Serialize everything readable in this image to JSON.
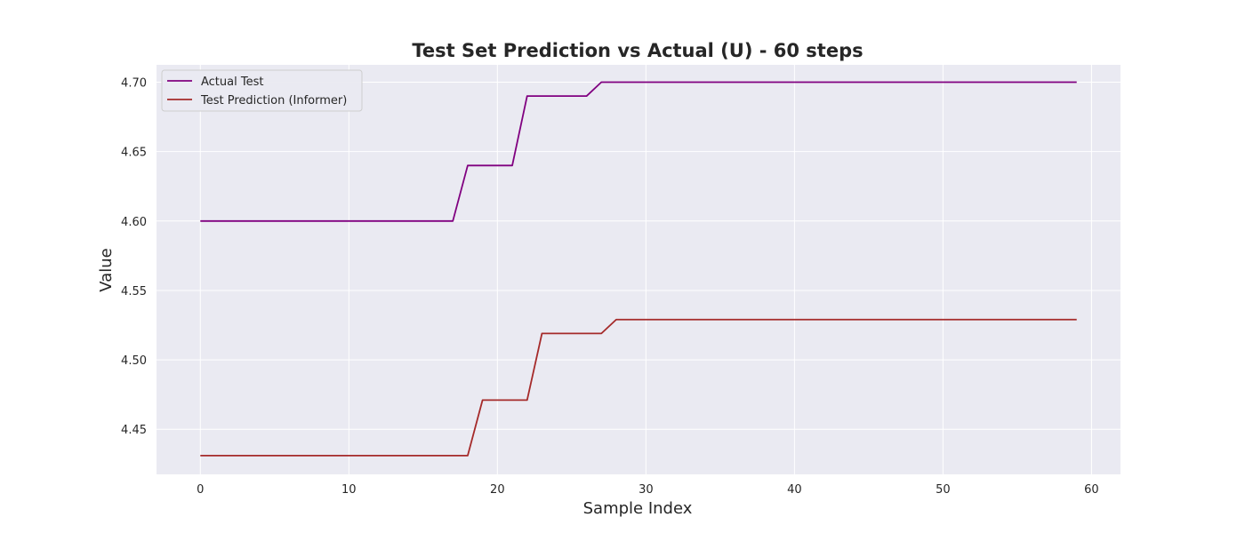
{
  "chart_data": {
    "type": "line",
    "title": "Test Set Prediction vs Actual (U) - 60 steps",
    "xlabel": "Sample Index",
    "ylabel": "Value",
    "xlim": [
      -2.95,
      61.95
    ],
    "ylim": [
      4.4175,
      4.7125
    ],
    "xticks": [
      0,
      10,
      20,
      30,
      40,
      50,
      60
    ],
    "yticks": [
      4.45,
      4.5,
      4.55,
      4.6,
      4.65,
      4.7
    ],
    "grid": true,
    "legend_position": "top-left",
    "background": "#eaeaf2",
    "series": [
      {
        "name": "Actual Test",
        "color": "#800080",
        "x": [
          0,
          1,
          2,
          3,
          4,
          5,
          6,
          7,
          8,
          9,
          10,
          11,
          12,
          13,
          14,
          15,
          16,
          17,
          18,
          19,
          20,
          21,
          22,
          23,
          24,
          25,
          26,
          27,
          28,
          29,
          30,
          31,
          32,
          33,
          34,
          35,
          36,
          37,
          38,
          39,
          40,
          41,
          42,
          43,
          44,
          45,
          46,
          47,
          48,
          49,
          50,
          51,
          52,
          53,
          54,
          55,
          56,
          57,
          58,
          59
        ],
        "values": [
          4.6,
          4.6,
          4.6,
          4.6,
          4.6,
          4.6,
          4.6,
          4.6,
          4.6,
          4.6,
          4.6,
          4.6,
          4.6,
          4.6,
          4.6,
          4.6,
          4.6,
          4.6,
          4.64,
          4.64,
          4.64,
          4.64,
          4.69,
          4.69,
          4.69,
          4.69,
          4.69,
          4.7,
          4.7,
          4.7,
          4.7,
          4.7,
          4.7,
          4.7,
          4.7,
          4.7,
          4.7,
          4.7,
          4.7,
          4.7,
          4.7,
          4.7,
          4.7,
          4.7,
          4.7,
          4.7,
          4.7,
          4.7,
          4.7,
          4.7,
          4.7,
          4.7,
          4.7,
          4.7,
          4.7,
          4.7,
          4.7,
          4.7,
          4.7,
          4.7
        ]
      },
      {
        "name": "Test Prediction (Informer)",
        "color": "#a52a2a",
        "x": [
          0,
          1,
          2,
          3,
          4,
          5,
          6,
          7,
          8,
          9,
          10,
          11,
          12,
          13,
          14,
          15,
          16,
          17,
          18,
          19,
          20,
          21,
          22,
          23,
          24,
          25,
          26,
          27,
          28,
          29,
          30,
          31,
          32,
          33,
          34,
          35,
          36,
          37,
          38,
          39,
          40,
          41,
          42,
          43,
          44,
          45,
          46,
          47,
          48,
          49,
          50,
          51,
          52,
          53,
          54,
          55,
          56,
          57,
          58,
          59
        ],
        "values": [
          4.431,
          4.431,
          4.431,
          4.431,
          4.431,
          4.431,
          4.431,
          4.431,
          4.431,
          4.431,
          4.431,
          4.431,
          4.431,
          4.431,
          4.431,
          4.431,
          4.431,
          4.431,
          4.431,
          4.471,
          4.471,
          4.471,
          4.471,
          4.519,
          4.519,
          4.519,
          4.519,
          4.519,
          4.529,
          4.529,
          4.529,
          4.529,
          4.529,
          4.529,
          4.529,
          4.529,
          4.529,
          4.529,
          4.529,
          4.529,
          4.529,
          4.529,
          4.529,
          4.529,
          4.529,
          4.529,
          4.529,
          4.529,
          4.529,
          4.529,
          4.529,
          4.529,
          4.529,
          4.529,
          4.529,
          4.529,
          4.529,
          4.529,
          4.529,
          4.529
        ]
      }
    ]
  }
}
